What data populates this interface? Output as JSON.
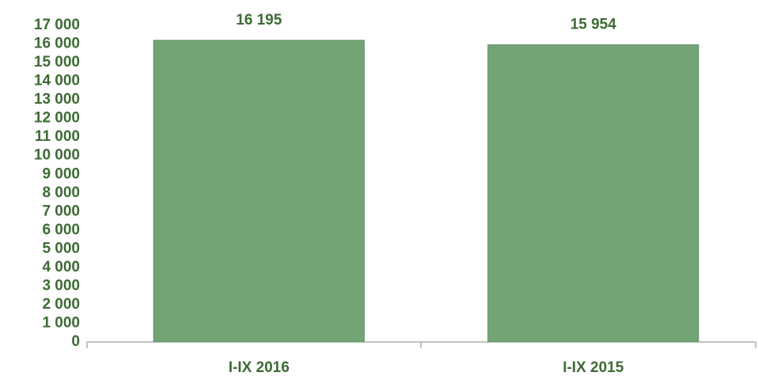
{
  "chart_data": {
    "type": "bar",
    "categories": [
      "I-IX 2016",
      "I-IX 2015"
    ],
    "values": [
      16195,
      15954
    ],
    "value_labels": [
      "16 195",
      "15 954"
    ],
    "color": "#72a475",
    "ylim": [
      0,
      17000
    ],
    "yticks": [
      0,
      {
        "value": 1000,
        "label": "1 000"
      },
      {
        "value": 2000,
        "label": "2 000"
      },
      {
        "value": 3000,
        "label": "3 000"
      },
      {
        "value": 4000,
        "label": "4 000"
      },
      {
        "value": 5000,
        "label": "5 000"
      },
      {
        "value": 6000,
        "label": "6 000"
      },
      {
        "value": 7000,
        "label": "7 000"
      },
      {
        "value": 8000,
        "label": "8 000"
      },
      {
        "value": 9000,
        "label": "9 000"
      },
      {
        "value": 10000,
        "label": "10 000"
      },
      {
        "value": 11000,
        "label": "11 000"
      },
      {
        "value": 12000,
        "label": "12 000"
      },
      {
        "value": 13000,
        "label": "13 000"
      },
      {
        "value": 14000,
        "label": "14 000"
      },
      {
        "value": 15000,
        "label": "15 000"
      },
      {
        "value": 16000,
        "label": "16 000"
      },
      {
        "value": 17000,
        "label": "17 000"
      }
    ],
    "grid": false
  }
}
